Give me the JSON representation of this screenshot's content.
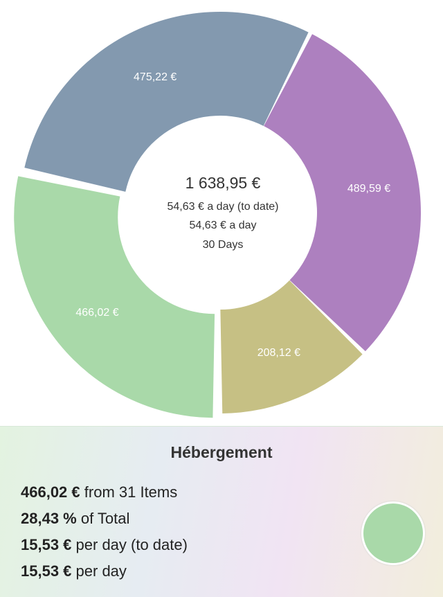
{
  "chart_data": {
    "type": "donut",
    "values": [
      489.59,
      208.12,
      466.02,
      475.22
    ],
    "value_labels": [
      "489,59 €",
      "208,12 €",
      "466,02 €",
      "475,22 €"
    ],
    "colors": [
      "#ad80bf",
      "#c6c084",
      "#a9d9a9",
      "#8399af"
    ],
    "selected": 2,
    "center": [
      "1 638,95 €",
      "54,63 € a day (to date)",
      "54,63 € a day",
      "30 Days"
    ]
  },
  "detail": {
    "title": "Hébergement",
    "lines": [
      [
        "466,02 €",
        "from 31 Items"
      ],
      [
        "28,43 %",
        "of Total"
      ],
      [
        "15,53 €",
        "per day (to date)"
      ],
      [
        "15,53 €",
        "per day"
      ]
    ],
    "color": "#a9d9a9"
  }
}
